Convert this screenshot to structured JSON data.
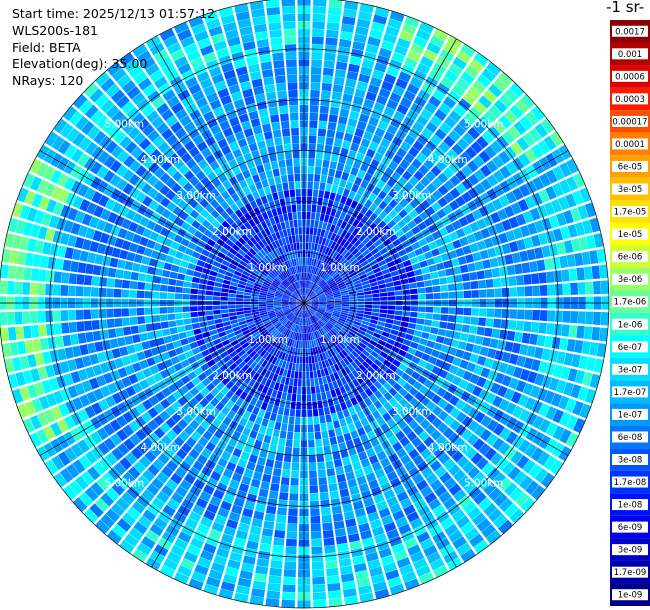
{
  "info": {
    "start_time": "Start time: 2025/12/13 01:57:12",
    "instrument": "WLS200s-181",
    "field": "Field: BETA",
    "elevation": "Elevation(deg): 35.00",
    "nrays": "NRays: 120"
  },
  "colorbar": {
    "unit_fragment": "-1 sr-",
    "labels": [
      "0.0017",
      "0.001",
      "0.0006",
      "0.0003",
      "0.00017",
      "0.0001",
      "6e-05",
      "3e-05",
      "1.7e-05",
      "1e-05",
      "6e-06",
      "3e-06",
      "1.7e-06",
      "1e-06",
      "6e-07",
      "3e-07",
      "1.7e-07",
      "1e-07",
      "6e-08",
      "3e-08",
      "1.7e-08",
      "1e-08",
      "6e-09",
      "3e-09",
      "1.7e-09",
      "1e-09"
    ],
    "colors": [
      "#8b0000",
      "#b00000",
      "#dd0000",
      "#ff1a00",
      "#ff4d00",
      "#ff8000",
      "#ffa000",
      "#ffc000",
      "#ffe000",
      "#ffff00",
      "#ccff33",
      "#99ff66",
      "#66ff99",
      "#33ffcc",
      "#00ffff",
      "#00ddff",
      "#00bbff",
      "#0099ff",
      "#0077ff",
      "#0055ff",
      "#0033ff",
      "#0011ff",
      "#0000ee",
      "#0000cc",
      "#0000aa",
      "#000088"
    ]
  },
  "chart_data": {
    "type": "heatmap",
    "projection": "polar-ppi",
    "nrays": 120,
    "range_rings_km": [
      1,
      2,
      3,
      4,
      5,
      6
    ],
    "range_labels": [
      "1.00km",
      "2.00km",
      "3.00km",
      "4.00km",
      "5.00km"
    ],
    "max_range_km": 6.0,
    "color_scale": "log",
    "value_range": [
      1e-09,
      0.0017
    ],
    "azimuth_gridline_spacing_deg": 30,
    "description_values": {
      "near_range_beta": 2e-08,
      "mid_range_beta": 1e-07,
      "outer_ring_beta": 1e-06
    }
  }
}
